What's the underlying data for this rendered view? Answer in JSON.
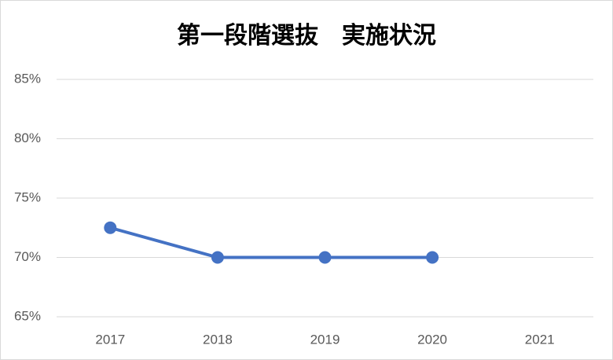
{
  "chart_data": {
    "type": "line",
    "title": "第一段階選抜　実施状況",
    "categories": [
      "2017",
      "2018",
      "2019",
      "2020",
      "2021"
    ],
    "series": [
      {
        "name": "実施状況",
        "color": "#4472c4",
        "values": [
          72.5,
          70,
          70,
          70,
          null
        ]
      }
    ],
    "ylim": [
      65,
      85
    ],
    "yticks": [
      {
        "value": 65,
        "label": "65%"
      },
      {
        "value": 70,
        "label": "70%"
      },
      {
        "value": 75,
        "label": "75%"
      },
      {
        "value": 80,
        "label": "80%"
      },
      {
        "value": 85,
        "label": "85%"
      }
    ],
    "grid": true
  }
}
